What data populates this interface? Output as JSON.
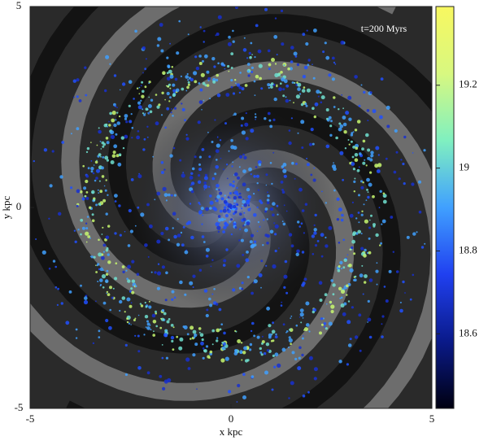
{
  "chart_data": {
    "type": "heatmap",
    "annotation": "t=200 Myrs",
    "xlabel": "x kpc",
    "ylabel": "y kpc",
    "xlim": [
      -5,
      5
    ],
    "ylim": [
      -5,
      5
    ],
    "xticks": [
      -5,
      0,
      5
    ],
    "yticks": [
      -5,
      0,
      5
    ],
    "colorbar": {
      "clim": [
        18.42,
        19.39
      ],
      "ticks": [
        18.6,
        18.8,
        19,
        19.2
      ],
      "colors": [
        "#000010",
        "#0a1a8a",
        "#2040f0",
        "#40a0ff",
        "#80f0c0",
        "#d8f880",
        "#f8f860"
      ]
    }
  }
}
